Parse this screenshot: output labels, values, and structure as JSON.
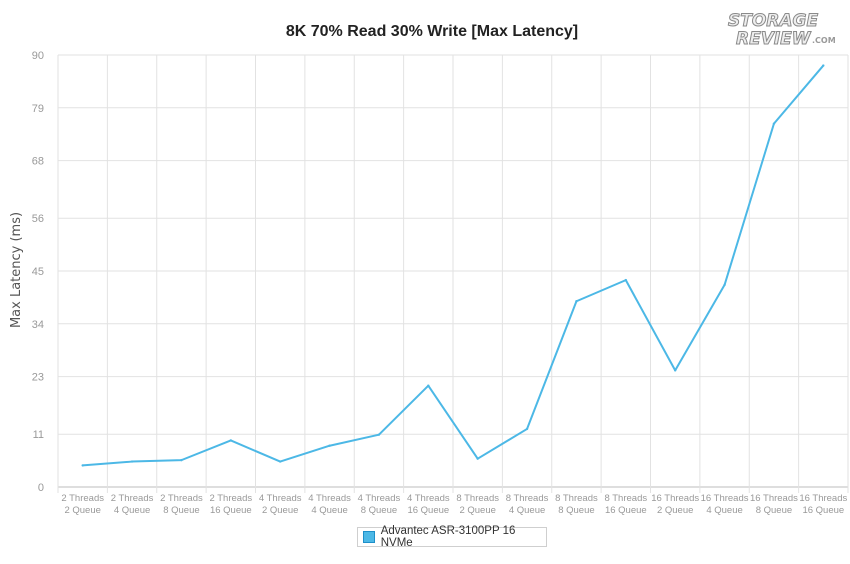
{
  "logo": {
    "line1": "STORAGE",
    "line2": "REVIEW",
    "suffix": ".COM"
  },
  "colors": {
    "series": "#4cb8e6",
    "grid": "#e2e2e2",
    "axis": "#bdbdbd"
  },
  "chart_data": {
    "type": "line",
    "title": "8K 70% Read 30% Write [Max Latency]",
    "xlabel": "",
    "ylabel": "Max Latency (ms)",
    "ylim": [
      0,
      90
    ],
    "yticks": [
      0,
      11,
      23,
      34,
      45,
      56,
      68,
      79,
      90
    ],
    "grid": true,
    "legend_position": "bottom-center",
    "categories": [
      [
        "2 Threads",
        "2 Queue"
      ],
      [
        "2 Threads",
        "4 Queue"
      ],
      [
        "2 Threads",
        "8 Queue"
      ],
      [
        "2 Threads",
        "16 Queue"
      ],
      [
        "4 Threads",
        "2 Queue"
      ],
      [
        "4 Threads",
        "4 Queue"
      ],
      [
        "4 Threads",
        "8 Queue"
      ],
      [
        "4 Threads",
        "16 Queue"
      ],
      [
        "8 Threads",
        "2 Queue"
      ],
      [
        "8 Threads",
        "4 Queue"
      ],
      [
        "8 Threads",
        "8 Queue"
      ],
      [
        "8 Threads",
        "16 Queue"
      ],
      [
        "16 Threads",
        "2 Queue"
      ],
      [
        "16 Threads",
        "4 Queue"
      ],
      [
        "16 Threads",
        "8 Queue"
      ],
      [
        "16 Threads",
        "16 Queue"
      ]
    ],
    "series": [
      {
        "name": "Advantec ASR-3100PP 16 NVMe",
        "values": [
          4.5,
          5.3,
          5.6,
          9.7,
          5.3,
          8.6,
          10.9,
          21.1,
          5.9,
          12.1,
          38.7,
          43.1,
          24.3,
          42.1,
          75.7,
          87.8
        ]
      }
    ]
  }
}
